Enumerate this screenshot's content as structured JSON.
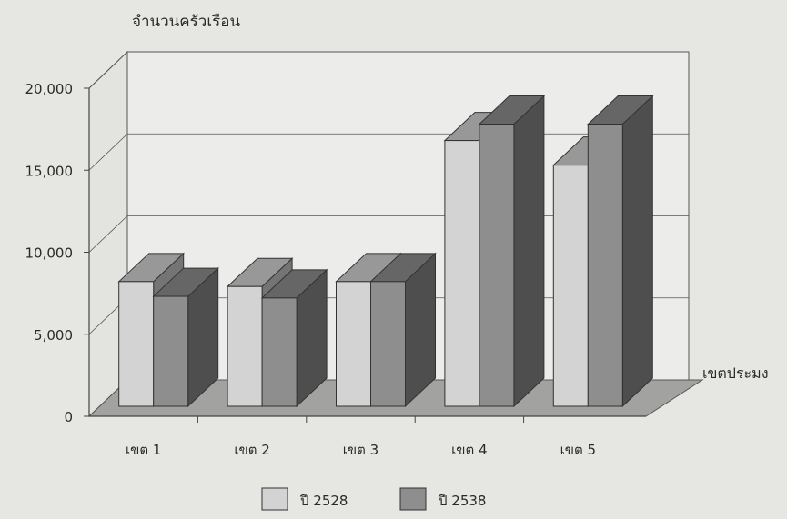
{
  "chart_data": {
    "type": "bar",
    "ylabel": "จำนวนครัวเรือน",
    "xlabel": "เขตประมง",
    "categories": [
      "เขต 1",
      "เขต 2",
      "เขต 3",
      "เขต 4",
      "เขต 5"
    ],
    "yticks": [
      "0",
      "5,000",
      "10,000",
      "15,000",
      "20,000"
    ],
    "ylim": [
      0,
      20000
    ],
    "grid": true,
    "legend_position": "bottom",
    "series": [
      {
        "name": "ปี 2528",
        "values": [
          7600,
          7300,
          7600,
          16200,
          14700
        ],
        "color": "#d3d3d3"
      },
      {
        "name": "ปี 2538",
        "values": [
          6700,
          6600,
          7600,
          17200,
          17200
        ],
        "color": "#8e8e8e"
      }
    ]
  }
}
